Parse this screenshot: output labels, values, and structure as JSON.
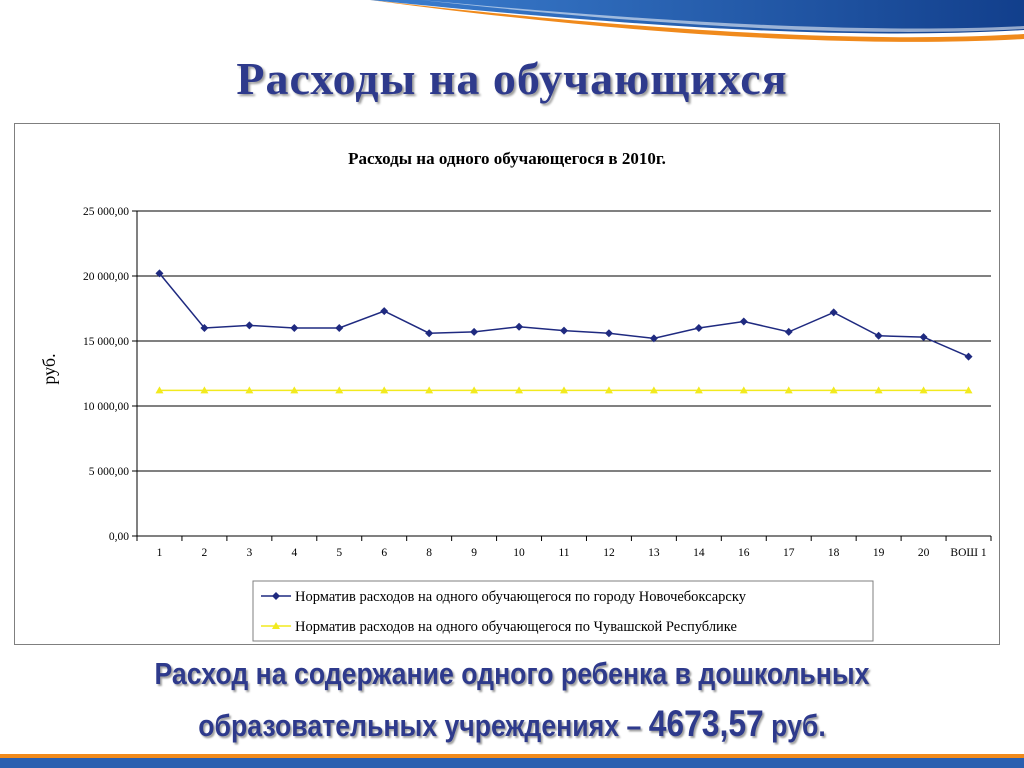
{
  "slide": {
    "title": "Расходы на обучающихся",
    "footer_line1": "Расход на содержание одного ребенка в дошкольных",
    "footer_line2_prefix": "образовательных учреждениях – ",
    "footer_amount": "4673,57",
    "footer_suffix": " руб."
  },
  "colors": {
    "title": "#2e3a8c",
    "series_city": "#1f2a80",
    "series_republic": "#f2ea1e",
    "swoosh_blue": "#1f5fb4",
    "swoosh_orange": "#f08a1c"
  },
  "chart_data": {
    "type": "line",
    "title": "Расходы на одного обучающегося в 2010г.",
    "xlabel": "",
    "ylabel": "руб.",
    "ylim": [
      0,
      25000
    ],
    "yticks": [
      "25 000,00",
      "20 000,00",
      "15 000,00",
      "10 000,00",
      "5 000,00",
      "0,00"
    ],
    "ytick_values": [
      25000,
      20000,
      15000,
      10000,
      5000,
      0
    ],
    "categories": [
      "1",
      "2",
      "3",
      "4",
      "5",
      "6",
      "8",
      "9",
      "10",
      "11",
      "12",
      "13",
      "14",
      "16",
      "17",
      "18",
      "19",
      "20",
      "ВОШ 1"
    ],
    "grid": true,
    "legend_position": "bottom",
    "series": [
      {
        "name": "Норматив расходов на одного обучающегося по городу Новочебоксарску",
        "marker": "diamond",
        "color": "#1f2a80",
        "values": [
          20200,
          16000,
          16200,
          16000,
          16000,
          17300,
          15600,
          15700,
          16100,
          15800,
          15600,
          15200,
          16000,
          16500,
          15700,
          17200,
          15400,
          15300,
          13800
        ]
      },
      {
        "name": "Норматив расходов на одного обучающегося по Чувашской Республике",
        "marker": "triangle",
        "color": "#f2ea1e",
        "values": [
          11200,
          11200,
          11200,
          11200,
          11200,
          11200,
          11200,
          11200,
          11200,
          11200,
          11200,
          11200,
          11200,
          11200,
          11200,
          11200,
          11200,
          11200,
          11200
        ]
      }
    ]
  }
}
